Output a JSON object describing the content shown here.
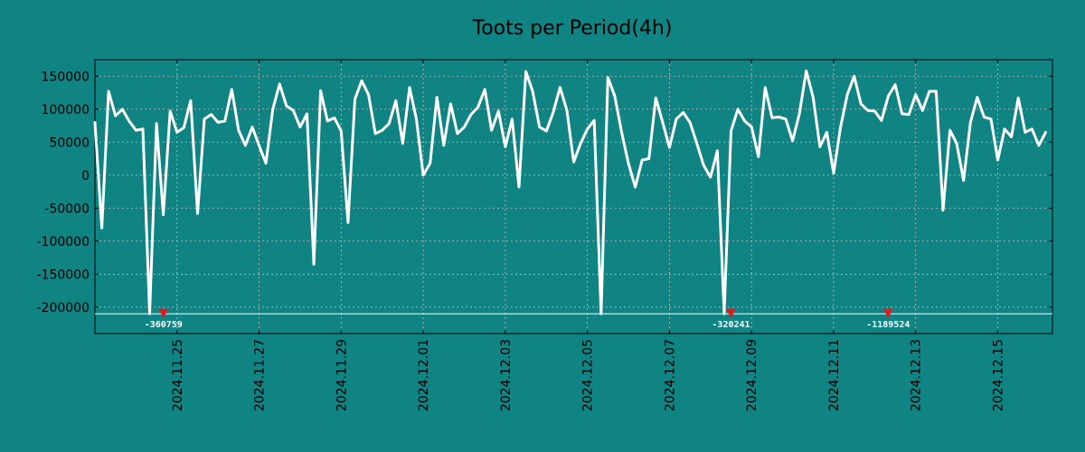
{
  "colors": {
    "background": "#108383",
    "line": "#ffffff",
    "marker": "#e31a1c",
    "grid": "#bfbfbf",
    "text": "#000000"
  },
  "chart_data": {
    "type": "line",
    "title": "Toots per Period(4h)",
    "xlabel": "",
    "ylabel": "",
    "grid": true,
    "ylim": [
      -240000,
      175000
    ],
    "yticks": [
      -200000,
      -150000,
      -100000,
      -50000,
      0,
      50000,
      100000,
      150000
    ],
    "ytick_labels": [
      "-200000",
      "-150000",
      "-100000",
      "-50000",
      "0",
      "50000",
      "100000",
      "150000"
    ],
    "x_range_days": [
      0,
      23.333
    ],
    "xtick_days": [
      2,
      4,
      6,
      8,
      10,
      12,
      14,
      16,
      18,
      20,
      22
    ],
    "xtick_labels": [
      "2024.11.25",
      "2024.11.27",
      "2024.11.29",
      "2024.12.01",
      "2024.12.03",
      "2024.12.05",
      "2024.12.07",
      "2024.12.09",
      "2024.12.11",
      "2024.12.13",
      "2024.12.15"
    ],
    "clip_line_value": -210000,
    "series": [
      {
        "name": "Toots per Period(4h)",
        "period_days": 0.16667,
        "values": [
          80000,
          -80000,
          127000,
          90000,
          100000,
          82000,
          68000,
          70000,
          -210000,
          78000,
          -60000,
          97000,
          65000,
          72000,
          113000,
          -58000,
          85000,
          92000,
          80000,
          82000,
          130000,
          68000,
          45000,
          73000,
          45000,
          18000,
          100000,
          138000,
          105000,
          98000,
          73000,
          93000,
          -135000,
          128000,
          82000,
          87000,
          67000,
          -72000,
          115000,
          143000,
          122000,
          63000,
          68000,
          78000,
          113000,
          48000,
          133000,
          85000,
          0,
          18000,
          118000,
          45000,
          108000,
          63000,
          73000,
          92000,
          103000,
          130000,
          68000,
          97000,
          43000,
          85000,
          -18000,
          157000,
          127000,
          73000,
          67000,
          95000,
          133000,
          98000,
          20000,
          48000,
          70000,
          83000,
          -210000,
          148000,
          120000,
          65000,
          18000,
          -18000,
          23000,
          25000,
          117000,
          80000,
          42000,
          85000,
          95000,
          80000,
          48000,
          15000,
          -3000,
          37000,
          -210000,
          67000,
          100000,
          82000,
          73000,
          28000,
          133000,
          87000,
          88000,
          85000,
          52000,
          93000,
          158000,
          118000,
          43000,
          65000,
          3000,
          72000,
          122000,
          150000,
          108000,
          98000,
          97000,
          83000,
          120000,
          137000,
          93000,
          92000,
          122000,
          98000,
          127000,
          127000,
          -53000,
          68000,
          48000,
          -8000,
          80000,
          118000,
          88000,
          85000,
          23000,
          70000,
          58000,
          117000,
          65000,
          70000,
          45000,
          65000
        ]
      }
    ],
    "annotations": [
      {
        "label": "-360759",
        "day": 1.67
      },
      {
        "label": "-320241",
        "day": 15.5
      },
      {
        "label": "-1189524",
        "day": 19.33
      }
    ]
  }
}
